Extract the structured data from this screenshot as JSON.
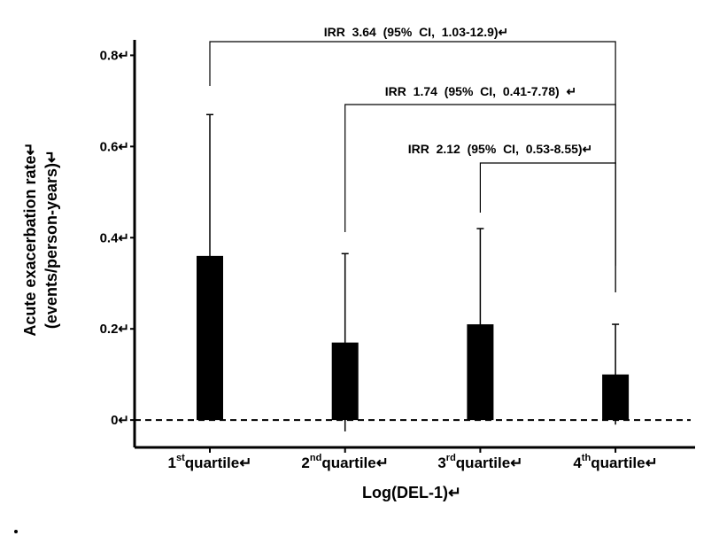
{
  "chart_data": {
    "type": "bar",
    "categories": [
      {
        "ordinal": "1",
        "sup": "st",
        "word": "quartile↵"
      },
      {
        "ordinal": "2",
        "sup": "nd",
        "word": "quartile↵"
      },
      {
        "ordinal": "3",
        "sup": "rd",
        "word": "quartile↵"
      },
      {
        "ordinal": "4",
        "sup": "th",
        "word": "quartile↵"
      }
    ],
    "values": [
      0.36,
      0.17,
      0.21,
      0.1
    ],
    "errors": [
      0.31,
      0.195,
      0.21,
      0.11
    ],
    "color": "#000000",
    "ylabel": [
      "Acute exacerbation rate↵",
      "(events/person-years)↵"
    ],
    "xlabel": "Log(DEL-1)↵",
    "ylim": [
      -0.06,
      0.83
    ],
    "yticks": [
      {
        "value": 0,
        "label": "0↵"
      },
      {
        "value": 0.2,
        "label": "0.2↵"
      },
      {
        "value": 0.4,
        "label": "0.4↵"
      },
      {
        "value": 0.6,
        "label": "0.6↵"
      },
      {
        "value": 0.8,
        "label": "0.8↵"
      }
    ],
    "annotations": [
      "IRR  3.64  (95%  CI,  1.03-12.9)↵",
      "IRR  1.74  (95%  CI,  0.41-7.78)  ↵",
      "IRR  2.12  (95%  CI,  0.53-8.55)↵"
    ]
  }
}
